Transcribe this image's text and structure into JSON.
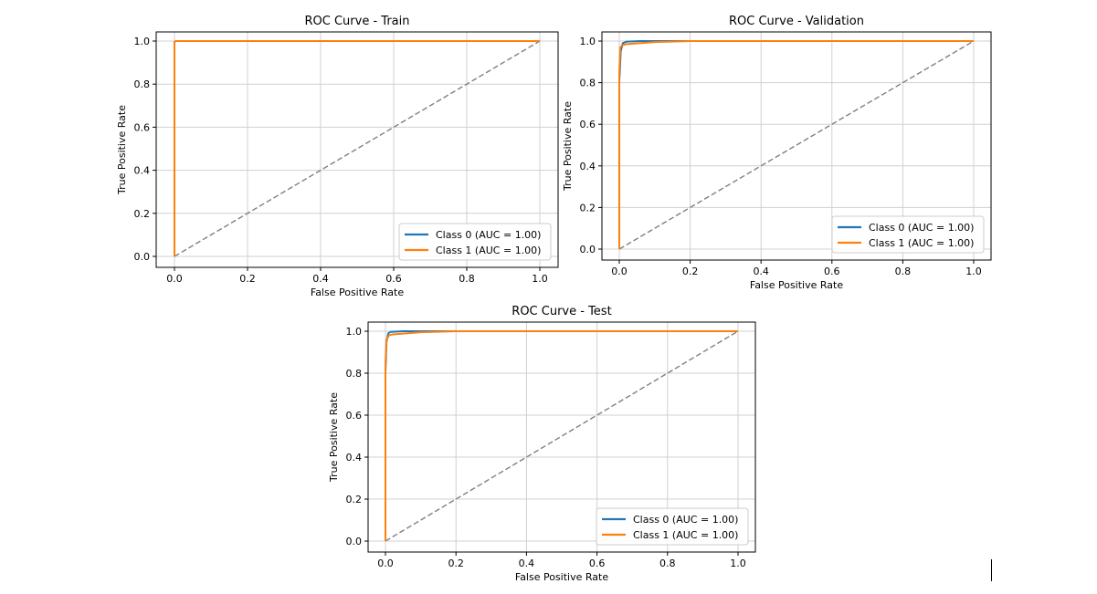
{
  "chart_data": [
    {
      "type": "line",
      "title": "ROC Curve - Train",
      "xlabel": "False Positive Rate",
      "ylabel": "True Positive Rate",
      "xlim": [
        0.0,
        1.0
      ],
      "ylim": [
        0.0,
        1.0
      ],
      "xticks": [
        "0.0",
        "0.2",
        "0.4",
        "0.6",
        "0.8",
        "1.0"
      ],
      "yticks": [
        "0.0",
        "0.2",
        "0.4",
        "0.6",
        "0.8",
        "1.0"
      ],
      "grid": true,
      "legend_position": "lower-right",
      "series": [
        {
          "name": "Class 0 (AUC = 1.00)",
          "color": "#1f77b4",
          "x": [
            0.0,
            0.0,
            0.004,
            1.0
          ],
          "y": [
            0.0,
            0.995,
            1.0,
            1.0
          ]
        },
        {
          "name": "Class 1 (AUC = 1.00)",
          "color": "#ff7f0e",
          "x": [
            0.0,
            0.0,
            0.004,
            1.0
          ],
          "y": [
            0.0,
            0.995,
            1.0,
            1.0
          ]
        }
      ],
      "reference_line": {
        "x": [
          0,
          1
        ],
        "y": [
          0,
          1
        ],
        "color": "#808080"
      }
    },
    {
      "type": "line",
      "title": "ROC Curve - Validation",
      "xlabel": "False Positive Rate",
      "ylabel": "True Positive Rate",
      "xlim": [
        0.0,
        1.0
      ],
      "ylim": [
        0.0,
        1.0
      ],
      "xticks": [
        "0.0",
        "0.2",
        "0.4",
        "0.6",
        "0.8",
        "1.0"
      ],
      "yticks": [
        "0.0",
        "0.2",
        "0.4",
        "0.6",
        "0.8",
        "1.0"
      ],
      "grid": true,
      "legend_position": "lower-right",
      "series": [
        {
          "name": "Class 0 (AUC = 1.00)",
          "color": "#1f77b4",
          "x": [
            0.0,
            0.0,
            0.004,
            0.01,
            0.02,
            0.06,
            0.2,
            1.0
          ],
          "y": [
            0.0,
            0.8,
            0.95,
            0.99,
            0.997,
            1.0,
            1.0,
            1.0
          ]
        },
        {
          "name": "Class 1 (AUC = 1.00)",
          "color": "#ff7f0e",
          "x": [
            0.0,
            0.0,
            0.003,
            0.008,
            0.02,
            0.1,
            0.2,
            1.0
          ],
          "y": [
            0.0,
            0.85,
            0.97,
            0.98,
            0.985,
            0.995,
            1.0,
            1.0
          ]
        }
      ],
      "reference_line": {
        "x": [
          0,
          1
        ],
        "y": [
          0,
          1
        ],
        "color": "#808080"
      }
    },
    {
      "type": "line",
      "title": "ROC Curve - Test",
      "xlabel": "False Positive Rate",
      "ylabel": "True Positive Rate",
      "xlim": [
        0.0,
        1.0
      ],
      "ylim": [
        0.0,
        1.0
      ],
      "xticks": [
        "0.0",
        "0.2",
        "0.4",
        "0.6",
        "0.8",
        "1.0"
      ],
      "yticks": [
        "0.0",
        "0.2",
        "0.4",
        "0.6",
        "0.8",
        "1.0"
      ],
      "grid": true,
      "legend_position": "lower-right",
      "series": [
        {
          "name": "Class 0 (AUC = 1.00)",
          "color": "#1f77b4",
          "x": [
            0.0,
            0.0,
            0.003,
            0.008,
            0.015,
            0.05,
            0.2,
            1.0
          ],
          "y": [
            0.0,
            0.8,
            0.95,
            0.99,
            0.997,
            1.0,
            1.0,
            1.0
          ]
        },
        {
          "name": "Class 1 (AUC = 1.00)",
          "color": "#ff7f0e",
          "x": [
            0.0,
            0.0,
            0.003,
            0.01,
            0.02,
            0.1,
            0.2,
            1.0
          ],
          "y": [
            0.0,
            0.85,
            0.96,
            0.98,
            0.985,
            0.995,
            1.0,
            1.0
          ]
        }
      ],
      "reference_line": {
        "x": [
          0,
          1
        ],
        "y": [
          0,
          1
        ],
        "color": "#808080"
      }
    }
  ]
}
